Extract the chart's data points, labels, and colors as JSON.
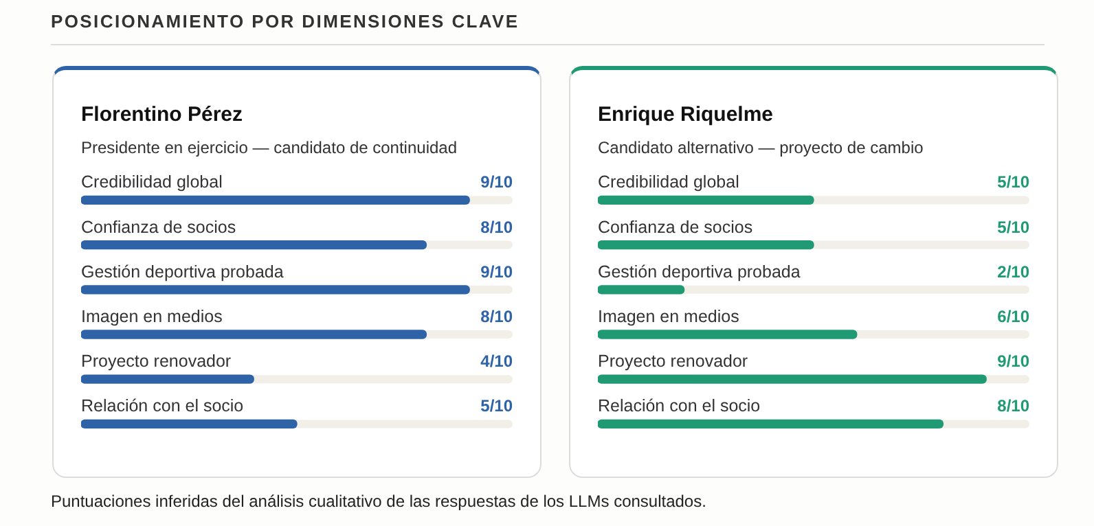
{
  "chart_data": [
    {
      "type": "bar",
      "orientation": "horizontal",
      "title": "Florentino Pérez",
      "subtitle": "Presidente en ejercicio — candidato de continuidad",
      "annotations": [
        "POSICIONAMIENTO POR DIMENSIONES CLAVE"
      ],
      "categories": [
        "Credibilidad global",
        "Confianza de socios",
        "Gestión deportiva probada",
        "Imagen en medios",
        "Proyecto renovador",
        "Relación con el socio"
      ],
      "values": [
        0.9,
        0.8,
        0.9,
        0.8,
        0.4,
        0.5
      ],
      "color": "#2f63a8",
      "xlim": [
        0,
        1
      ],
      "value_labels": [
        "9/10",
        "8/10",
        "9/10",
        "8/10",
        "4/10",
        "5/10"
      ]
    },
    {
      "type": "bar",
      "orientation": "horizontal",
      "title": "Enrique Riquelme",
      "subtitle": "Candidato alternativo — proyecto de cambio",
      "annotations": [
        "Puntuaciones inferidas del análisis cualitativo de las respuestas de los LLMs consultados."
      ],
      "categories": [
        "Credibilidad global",
        "Confianza de socios",
        "Gestión deportiva probada",
        "Imagen en medios",
        "Proyecto renovador",
        "Relación con el socio"
      ],
      "values": [
        0.5,
        0.5,
        0.2,
        0.6,
        0.9,
        0.8
      ],
      "color": "#1f9a72",
      "xlim": [
        0,
        1
      ],
      "value_labels": [
        "5/10",
        "5/10",
        "2/10",
        "6/10",
        "9/10",
        "8/10"
      ]
    }
  ]
}
